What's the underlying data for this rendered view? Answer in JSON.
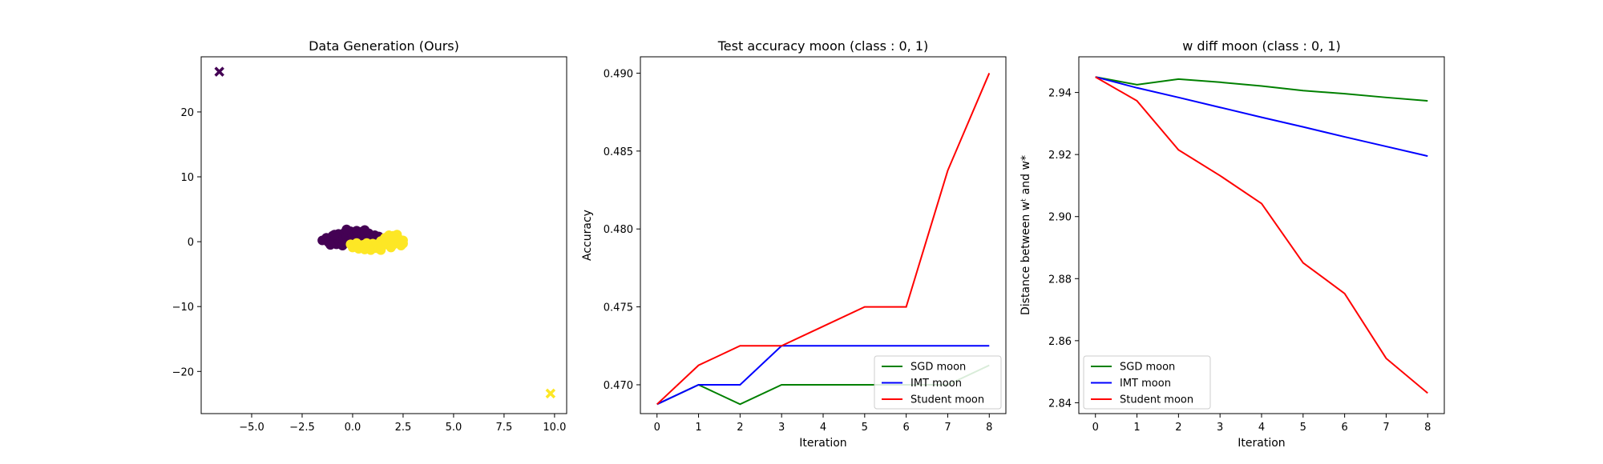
{
  "chart_data": [
    {
      "type": "scatter",
      "title": "Data Generation (Ours)",
      "xlabel": "",
      "ylabel": "",
      "xlim": [
        -7.5,
        10.6
      ],
      "ylim": [
        -26.5,
        28.5
      ],
      "xticks": [
        -5.0,
        -2.5,
        0.0,
        2.5,
        5.0,
        7.5,
        10.0
      ],
      "xtick_labels": [
        "−5.0",
        "−2.5",
        "0.0",
        "2.5",
        "5.0",
        "7.5",
        "10.0"
      ],
      "yticks": [
        20,
        10,
        0,
        -10,
        -20
      ],
      "ytick_labels": [
        "20",
        "10",
        "0",
        "−10",
        "−20"
      ],
      "grid": false,
      "series": [
        {
          "color": "#440154",
          "marker": "o",
          "points": [
            [
              -1.5,
              0.2
            ],
            [
              -1.3,
              0.6
            ],
            [
              -1.2,
              -0.1
            ],
            [
              -1.0,
              0.9
            ],
            [
              -0.9,
              0.3
            ],
            [
              -0.8,
              -0.4
            ],
            [
              -0.7,
              1.2
            ],
            [
              -0.6,
              0.6
            ],
            [
              -0.5,
              -0.6
            ],
            [
              -0.4,
              1.4
            ],
            [
              -0.3,
              0.8
            ],
            [
              -0.2,
              0.1
            ],
            [
              -0.1,
              1.6
            ],
            [
              0.0,
              1.0
            ],
            [
              0.1,
              0.3
            ],
            [
              0.2,
              1.7
            ],
            [
              0.3,
              1.1
            ],
            [
              0.4,
              0.5
            ],
            [
              0.5,
              1.6
            ],
            [
              0.6,
              0.9
            ],
            [
              0.7,
              0.2
            ],
            [
              0.8,
              1.3
            ],
            [
              0.9,
              0.6
            ],
            [
              1.0,
              -0.1
            ],
            [
              1.1,
              1.0
            ],
            [
              1.2,
              0.4
            ],
            [
              1.3,
              0.8
            ],
            [
              -1.1,
              -0.5
            ],
            [
              0.6,
              1.8
            ],
            [
              -0.3,
              1.9
            ],
            [
              0.3,
              0.0
            ],
            [
              -0.9,
              1.1
            ]
          ]
        },
        {
          "color": "#fde725",
          "marker": "o",
          "points": [
            [
              -0.1,
              -0.4
            ],
            [
              0.0,
              -0.9
            ],
            [
              0.2,
              -0.2
            ],
            [
              0.3,
              -1.1
            ],
            [
              0.5,
              -0.5
            ],
            [
              0.6,
              -1.2
            ],
            [
              0.8,
              -0.7
            ],
            [
              0.9,
              -1.3
            ],
            [
              1.0,
              -0.3
            ],
            [
              1.1,
              -1.0
            ],
            [
              1.2,
              -0.4
            ],
            [
              1.3,
              -1.1
            ],
            [
              1.4,
              0.1
            ],
            [
              1.5,
              -0.6
            ],
            [
              1.6,
              0.6
            ],
            [
              1.7,
              -0.3
            ],
            [
              1.8,
              1.0
            ],
            [
              1.9,
              0.2
            ],
            [
              2.0,
              -0.5
            ],
            [
              2.1,
              0.7
            ],
            [
              2.2,
              -0.1
            ],
            [
              2.3,
              0.4
            ],
            [
              2.4,
              -0.6
            ],
            [
              2.5,
              0.2
            ],
            [
              1.9,
              -0.9
            ],
            [
              2.2,
              1.1
            ],
            [
              0.7,
              -0.2
            ],
            [
              1.4,
              -1.3
            ],
            [
              2.5,
              -0.3
            ],
            [
              2.0,
              0.9
            ]
          ]
        },
        {
          "color": "#440154",
          "marker": "x",
          "points": [
            [
              -6.6,
              26.2
            ]
          ]
        },
        {
          "color": "#fde725",
          "marker": "x",
          "points": [
            [
              9.8,
              -23.4
            ]
          ]
        }
      ]
    },
    {
      "type": "line",
      "title": "Test accuracy moon (class : 0, 1)",
      "xlabel": "Iteration",
      "ylabel": "Accuracy",
      "xlim": [
        -0.4,
        8.4
      ],
      "ylim": [
        0.46815,
        0.49105
      ],
      "x": [
        0,
        1,
        2,
        3,
        4,
        5,
        6,
        7,
        8
      ],
      "xticks": [
        0,
        1,
        2,
        3,
        4,
        5,
        6,
        7,
        8
      ],
      "xtick_labels": [
        "0",
        "1",
        "2",
        "3",
        "4",
        "5",
        "6",
        "7",
        "8"
      ],
      "yticks": [
        0.47,
        0.475,
        0.48,
        0.485,
        0.49
      ],
      "ytick_labels": [
        "0.470",
        "0.475",
        "0.480",
        "0.485",
        "0.490"
      ],
      "grid": false,
      "legend_placement": "lower-right",
      "series": [
        {
          "name": "SGD moon",
          "color": "#008000",
          "values": [
            0.46875,
            0.47,
            0.46875,
            0.47,
            0.47,
            0.47,
            0.47,
            0.47,
            0.47125
          ]
        },
        {
          "name": "IMT moon",
          "color": "#0000ff",
          "values": [
            0.46875,
            0.47,
            0.47,
            0.4725,
            0.4725,
            0.4725,
            0.4725,
            0.4725,
            0.4725
          ]
        },
        {
          "name": "Student moon",
          "color": "#ff0000",
          "values": [
            0.46875,
            0.47125,
            0.4725,
            0.4725,
            0.47375,
            0.475,
            0.475,
            0.48375,
            0.49
          ]
        }
      ]
    },
    {
      "type": "line",
      "title": "w diff moon (class : 0, 1)",
      "xlabel": "Iteration",
      "ylabel": "Distance between wᵗ and w*",
      "xlim": [
        -0.4,
        8.4
      ],
      "ylim": [
        2.8365,
        2.9515
      ],
      "x": [
        0,
        1,
        2,
        3,
        4,
        5,
        6,
        7,
        8
      ],
      "xticks": [
        0,
        1,
        2,
        3,
        4,
        5,
        6,
        7,
        8
      ],
      "xtick_labels": [
        "0",
        "1",
        "2",
        "3",
        "4",
        "5",
        "6",
        "7",
        "8"
      ],
      "yticks": [
        2.84,
        2.86,
        2.88,
        2.9,
        2.92,
        2.94
      ],
      "ytick_labels": [
        "2.84",
        "2.86",
        "2.88",
        "2.90",
        "2.92",
        "2.94"
      ],
      "grid": false,
      "legend_placement": "lower-left",
      "series": [
        {
          "name": "SGD moon",
          "color": "#008000",
          "values": [
            2.945,
            2.9425,
            2.9443,
            2.9433,
            2.9421,
            2.9406,
            2.9396,
            2.9384,
            2.9373
          ]
        },
        {
          "name": "IMT moon",
          "color": "#0000ff",
          "values": [
            2.945,
            2.9415,
            2.9384,
            2.9352,
            2.932,
            2.9289,
            2.9257,
            2.9226,
            2.9195
          ]
        },
        {
          "name": "Student moon",
          "color": "#ff0000",
          "values": [
            2.945,
            2.9373,
            2.9215,
            2.9132,
            2.9042,
            2.8851,
            2.8752,
            2.8543,
            2.8431
          ]
        }
      ]
    }
  ]
}
